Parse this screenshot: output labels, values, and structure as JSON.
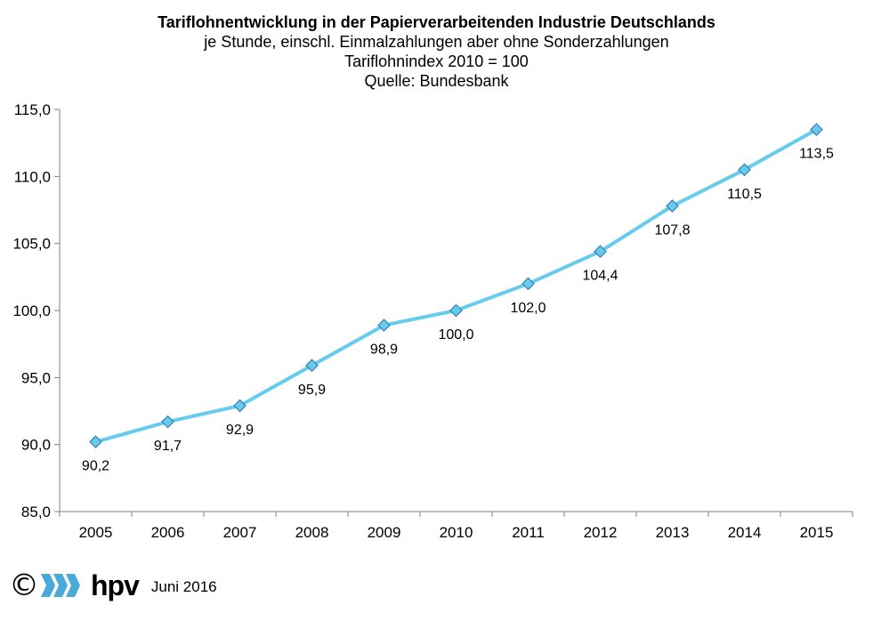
{
  "title": "Tariflohnentwicklung in der Papierverarbeitenden Industrie Deutschlands",
  "subtitle_lines": [
    "je Stunde, einschl. Einmalzahlungen aber ohne Sonderzahlungen",
    "Tariflohnindex 2010 = 100",
    "Quelle: Bundesbank"
  ],
  "chart_data": {
    "type": "line",
    "title": "Tariflohnentwicklung in der Papierverarbeitenden Industrie Deutschlands",
    "subtitle": "je Stunde, einschl. Einmalzahlungen aber ohne Sonderzahlungen / Tariflohnindex 2010 = 100 / Quelle: Bundesbank",
    "xlabel": "",
    "ylabel": "",
    "categories": [
      "2005",
      "2006",
      "2007",
      "2008",
      "2009",
      "2010",
      "2011",
      "2012",
      "2013",
      "2014",
      "2015"
    ],
    "series": [
      {
        "values": [
          90.2,
          91.7,
          92.9,
          95.9,
          98.9,
          100.0,
          102.0,
          104.4,
          107.8,
          110.5,
          113.5
        ],
        "labels": [
          "90,2",
          "91,7",
          "92,9",
          "95,9",
          "98,9",
          "100,0",
          "102,0",
          "104,4",
          "107,8",
          "110,5",
          "113,5"
        ],
        "line_color": "#66ccee",
        "marker": "diamond",
        "marker_fill": "#66ccee",
        "marker_stroke": "#3a7fb0"
      }
    ],
    "ylim": [
      85.0,
      115.0
    ],
    "yticks": [
      85.0,
      90.0,
      95.0,
      100.0,
      105.0,
      110.0,
      115.0
    ],
    "ytick_labels": [
      "85,0",
      "90,0",
      "95,0",
      "100,0",
      "105,0",
      "110,0",
      "115,0"
    ],
    "grid": false,
    "legend": "none"
  },
  "footer": {
    "copyright_symbol": "©",
    "logo_text": "hpv",
    "date": "Juni 2016"
  },
  "colors": {
    "axis": "#7f7f7f",
    "line": "#66ccee",
    "marker_stroke": "#3a7fb0",
    "logo_blue": "#4aa9d8"
  },
  "icons": {
    "logo": "hpv-chevron-logo-icon"
  }
}
